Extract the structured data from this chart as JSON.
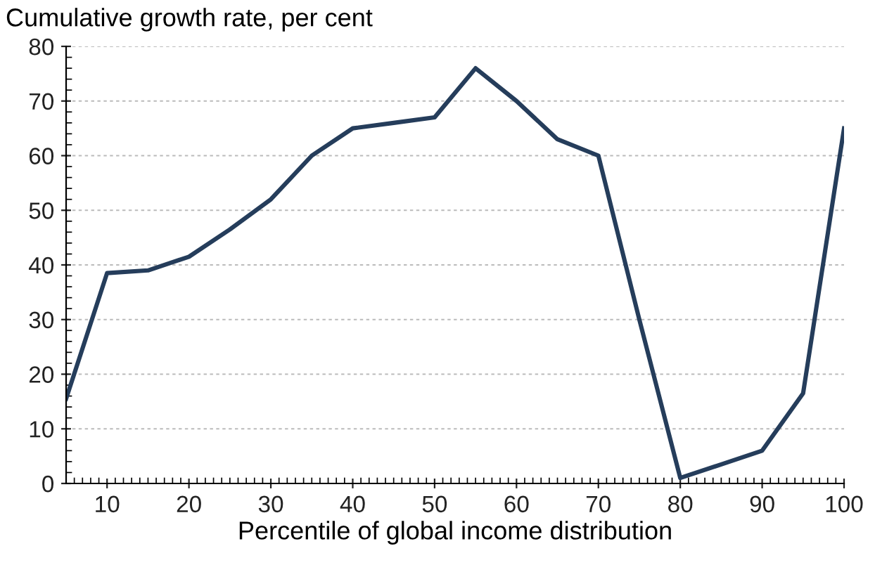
{
  "chart_data": {
    "type": "line",
    "ylabel": "Cumulative growth rate, per cent",
    "xlabel": "Percentile of global income distribution",
    "x": [
      5,
      10,
      15,
      20,
      25,
      30,
      35,
      40,
      45,
      50,
      55,
      60,
      65,
      70,
      75,
      80,
      85,
      90,
      95,
      100
    ],
    "series": [
      {
        "color": "#253d5b",
        "values": [
          15.5,
          38.5,
          39,
          41.5,
          46.5,
          52,
          60,
          65,
          66,
          67,
          76,
          70,
          63,
          60,
          30,
          1,
          3.5,
          6,
          16.5,
          65
        ]
      }
    ],
    "xlim": [
      5,
      100
    ],
    "xticks": [
      10,
      20,
      30,
      40,
      50,
      60,
      70,
      80,
      90,
      100
    ],
    "ylim": [
      0,
      80
    ],
    "yticks": [
      0,
      10,
      20,
      30,
      40,
      50,
      60,
      70,
      80
    ],
    "grid": "y",
    "marker": "none",
    "line_style": "solid",
    "legend": false
  }
}
